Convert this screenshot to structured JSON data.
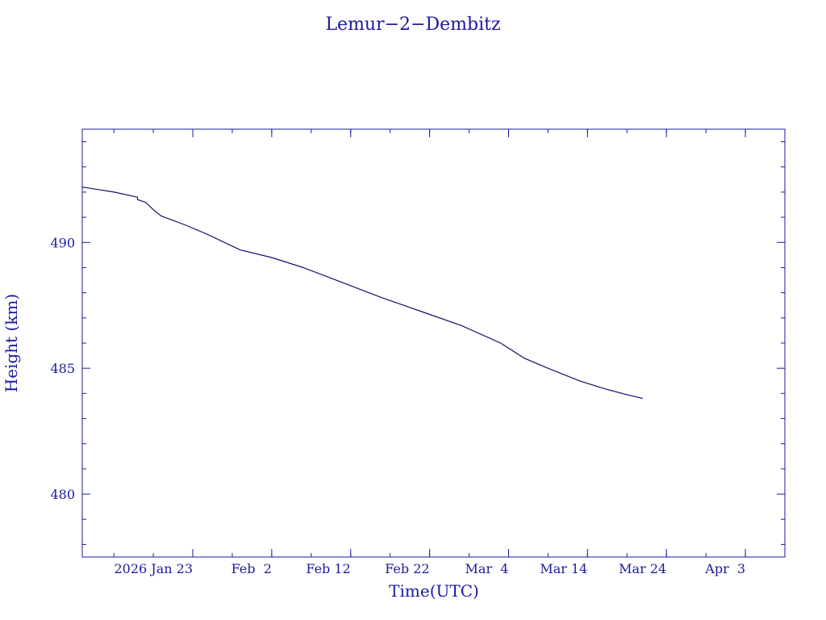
{
  "chart_data": {
    "type": "line",
    "title": "Lemur−2−Dembitz",
    "xlabel": "Time(UTC)",
    "ylabel": "Height (km)",
    "xlim": [
      "2026-01-09",
      "2026-04-08"
    ],
    "ylim": [
      477.5,
      494.5
    ],
    "grid": false,
    "x_ticks": [
      {
        "label": "2026 Jan 23",
        "date": "2026-01-23"
      },
      {
        "label": "Feb  2",
        "date": "2026-02-02"
      },
      {
        "label": "Feb 12",
        "date": "2026-02-12"
      },
      {
        "label": "Feb 22",
        "date": "2026-02-22"
      },
      {
        "label": "Mar  4",
        "date": "2026-03-04"
      },
      {
        "label": "Mar 14",
        "date": "2026-03-14"
      },
      {
        "label": "Mar 24",
        "date": "2026-03-24"
      },
      {
        "label": "Apr  3",
        "date": "2026-04-03"
      }
    ],
    "y_ticks": [
      {
        "label": "480",
        "value": 480
      },
      {
        "label": "485",
        "value": 485
      },
      {
        "label": "490",
        "value": 490
      }
    ],
    "series": [
      {
        "color": "#10106e",
        "points": [
          {
            "x": "2026-01-09",
            "y": 492.2
          },
          {
            "x": "2026-01-13",
            "y": 492.0
          },
          {
            "x": "2026-01-16",
            "y": 491.8
          },
          {
            "x": "2026-01-16",
            "y": 491.7
          },
          {
            "x": "2026-01-17",
            "y": 491.6
          },
          {
            "x": "2026-01-18",
            "y": 491.3
          },
          {
            "x": "2026-01-19",
            "y": 491.05
          },
          {
            "x": "2026-01-22",
            "y": 490.7
          },
          {
            "x": "2026-01-25",
            "y": 490.3
          },
          {
            "x": "2026-01-29",
            "y": 489.7
          },
          {
            "x": "2026-02-02",
            "y": 489.4
          },
          {
            "x": "2026-02-06",
            "y": 489.0
          },
          {
            "x": "2026-02-11",
            "y": 488.4
          },
          {
            "x": "2026-02-16",
            "y": 487.8
          },
          {
            "x": "2026-02-21",
            "y": 487.25
          },
          {
            "x": "2026-02-26",
            "y": 486.7
          },
          {
            "x": "2026-03-03",
            "y": 486.0
          },
          {
            "x": "2026-03-06",
            "y": 485.4
          },
          {
            "x": "2026-03-09",
            "y": 485.0
          },
          {
            "x": "2026-03-13",
            "y": 484.5
          },
          {
            "x": "2026-03-16",
            "y": 484.2
          },
          {
            "x": "2026-03-19",
            "y": 483.95
          },
          {
            "x": "2026-03-21",
            "y": 483.8
          }
        ]
      }
    ]
  }
}
